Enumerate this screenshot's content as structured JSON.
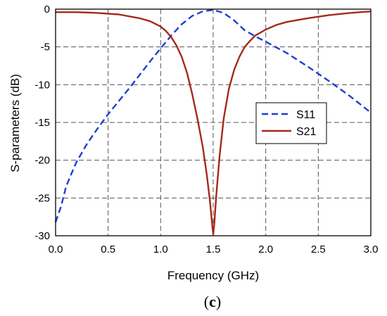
{
  "chart_data": {
    "type": "line",
    "xlabel": "Frequency (GHz)",
    "ylabel": "S-parameters (dB)",
    "xlim": [
      0,
      3
    ],
    "ylim": [
      -30,
      0
    ],
    "xticks": [
      "0.0",
      "0.5",
      "1.0",
      "1.5",
      "2.0",
      "2.5",
      "3.0"
    ],
    "yticks": [
      "0",
      "-5",
      "-10",
      "-15",
      "-20",
      "-25",
      "-30"
    ],
    "grid": true,
    "legend_position": "center-right",
    "series": [
      {
        "name": "S11",
        "color": "#1f3fd1",
        "style": "dashed",
        "x": [
          0.0,
          0.05,
          0.1,
          0.15,
          0.2,
          0.3,
          0.4,
          0.5,
          0.6,
          0.7,
          0.8,
          0.9,
          1.0,
          1.1,
          1.2,
          1.3,
          1.4,
          1.5,
          1.6,
          1.7,
          1.8,
          1.9,
          2.0,
          2.2,
          2.4,
          2.6,
          2.8,
          3.0
        ],
        "y": [
          -28.2,
          -26.2,
          -23.5,
          -21.8,
          -20.2,
          -17.8,
          -15.8,
          -13.9,
          -12.2,
          -10.5,
          -8.7,
          -6.9,
          -5.2,
          -3.5,
          -2.0,
          -0.9,
          -0.3,
          -0.1,
          -0.5,
          -1.5,
          -2.8,
          -3.6,
          -4.3,
          -5.8,
          -7.6,
          -9.5,
          -11.5,
          -13.7
        ]
      },
      {
        "name": "S21",
        "color": "#a52a1a",
        "style": "solid",
        "x": [
          0.0,
          0.2,
          0.4,
          0.6,
          0.8,
          0.9,
          1.0,
          1.05,
          1.1,
          1.15,
          1.2,
          1.25,
          1.3,
          1.35,
          1.4,
          1.44,
          1.47,
          1.49,
          1.5,
          1.51,
          1.53,
          1.56,
          1.6,
          1.65,
          1.7,
          1.75,
          1.8,
          1.85,
          1.9,
          2.0,
          2.1,
          2.2,
          2.4,
          2.6,
          2.8,
          3.0
        ],
        "y": [
          -0.4,
          -0.4,
          -0.5,
          -0.7,
          -1.2,
          -1.6,
          -2.3,
          -2.9,
          -3.7,
          -4.8,
          -6.3,
          -8.4,
          -11.2,
          -14.5,
          -18.2,
          -22.0,
          -25.5,
          -28.5,
          -29.8,
          -28.5,
          -24.5,
          -19.5,
          -14.5,
          -10.5,
          -8.0,
          -6.3,
          -5.0,
          -4.2,
          -3.5,
          -2.7,
          -2.1,
          -1.7,
          -1.2,
          -0.8,
          -0.5,
          -0.3
        ]
      }
    ]
  },
  "caption": {
    "open": "(",
    "letter": "c",
    "close": ")"
  }
}
